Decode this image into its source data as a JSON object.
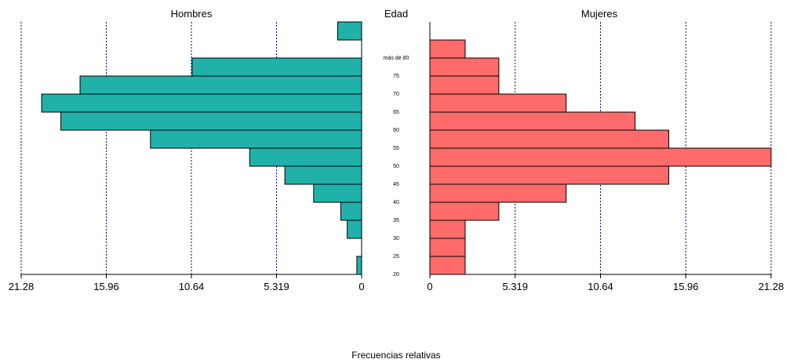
{
  "chart_data": {
    "type": "bar",
    "subtype": "population-pyramid",
    "left_title": "Hombres",
    "center_title": "Edad",
    "right_title": "Mujeres",
    "xlabel": "Frecuencias relativas",
    "age_groups": [
      "20",
      "25",
      "30",
      "35",
      "40",
      "45",
      "50",
      "55",
      "60",
      "65",
      "70",
      "75",
      "más de 80",
      ""
    ],
    "series": [
      {
        "name": "Hombres",
        "color": "#20b2aa",
        "values": [
          0.3,
          0.0,
          0.9,
          1.3,
          3.0,
          4.8,
          7.0,
          13.2,
          18.8,
          20.0,
          17.6,
          10.6,
          0.0,
          1.5
        ]
      },
      {
        "name": "Mujeres",
        "color": "#ff6a6a",
        "values": [
          2.2,
          2.2,
          2.2,
          4.3,
          8.5,
          14.9,
          21.28,
          14.9,
          12.8,
          8.5,
          4.3,
          4.3,
          2.2,
          0.0
        ]
      }
    ],
    "xlim": [
      0,
      21.28
    ],
    "ticks": [
      "0",
      "5.319",
      "10.64",
      "15.96",
      "21.28"
    ],
    "tick_values": [
      0,
      5.319,
      10.64,
      15.96,
      21.28
    ],
    "grid": "vertical dotted"
  }
}
